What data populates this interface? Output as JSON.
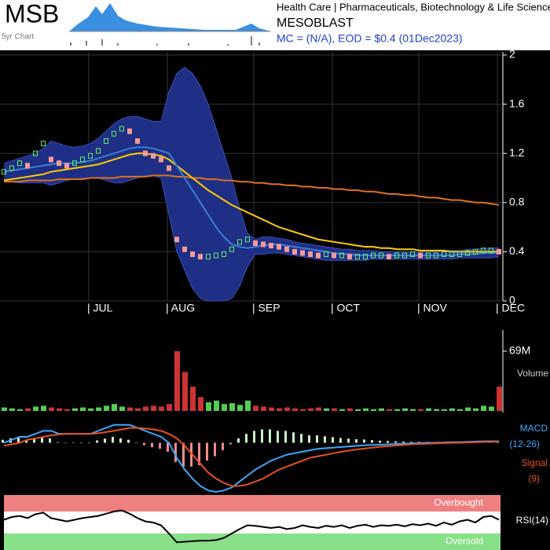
{
  "header": {
    "ticker": "MSB",
    "sparkline_label": "5yr Chart",
    "sector": "Health Care | Pharmaceuticals, Biotechnology & Life Sciences",
    "name": "MESOBLAST",
    "summary": "MC = (N/A), EOD = $0.4 (01Dec2023)"
  },
  "chart_data": [
    {
      "type": "line",
      "categories": [
        null,
        null,
        null,
        null,
        null,
        null,
        null,
        null,
        null,
        null,
        null,
        "| JUL",
        null,
        null,
        null,
        null,
        null,
        null,
        null,
        null,
        null,
        "| AUG",
        null,
        null,
        null,
        null,
        null,
        null,
        null,
        null,
        null,
        null,
        "| SEP",
        null,
        null,
        null,
        null,
        null,
        null,
        null,
        null,
        null,
        "| OCT",
        null,
        null,
        null,
        null,
        null,
        null,
        null,
        null,
        null,
        null,
        "| NOV",
        null,
        null,
        null,
        null,
        null,
        null,
        null,
        null,
        null,
        "| DEC"
      ],
      "ylim": [
        0,
        2
      ],
      "yticks": [
        0,
        0.4,
        0.8,
        1.2,
        1.6,
        2
      ],
      "grid": true,
      "series": [
        {
          "type": "band",
          "color": "#1f2f85",
          "line_color": "#3a4fb8",
          "upper": [
            1.12,
            1.14,
            1.16,
            1.18,
            1.2,
            1.24,
            1.3,
            1.28,
            1.26,
            1.25,
            1.26,
            1.28,
            1.32,
            1.38,
            1.44,
            1.48,
            1.5,
            1.5,
            1.48,
            1.46,
            1.46,
            1.7,
            1.85,
            1.9,
            1.85,
            1.75,
            1.6,
            1.4,
            1.2,
            1.0,
            0.75,
            0.55,
            0.5,
            0.52,
            0.52,
            0.51,
            0.5,
            0.48,
            0.47,
            0.46,
            0.45,
            0.44,
            0.43,
            0.42,
            0.42,
            0.41,
            0.41,
            0.41,
            0.4,
            0.4,
            0.4,
            0.4,
            0.4,
            0.4,
            0.4,
            0.4,
            0.41,
            0.41,
            0.41,
            0.42,
            0.42,
            0.43,
            0.43,
            0.43
          ],
          "lower": [
            0.98,
            0.97,
            0.96,
            0.96,
            0.96,
            0.96,
            0.94,
            0.96,
            0.98,
            0.99,
            1.0,
            1.0,
            1.0,
            0.98,
            0.96,
            0.96,
            0.98,
            1.0,
            1.02,
            1.02,
            1.0,
            0.7,
            0.4,
            0.25,
            0.1,
            0.02,
            0,
            0,
            0,
            0.02,
            0.12,
            0.28,
            0.38,
            0.38,
            0.39,
            0.39,
            0.38,
            0.37,
            0.36,
            0.35,
            0.34,
            0.33,
            0.33,
            0.33,
            0.33,
            0.33,
            0.33,
            0.34,
            0.34,
            0.34,
            0.34,
            0.34,
            0.34,
            0.34,
            0.34,
            0.34,
            0.34,
            0.34,
            0.35,
            0.35,
            0.35,
            0.35,
            0.35,
            0.36
          ]
        },
        {
          "type": "line",
          "color": "#e0701f",
          "values": [
            0.97,
            0.97,
            0.97,
            0.98,
            0.98,
            0.98,
            0.98,
            0.99,
            0.99,
            0.99,
            0.99,
            1.0,
            1.0,
            1.0,
            1.0,
            1.01,
            1.01,
            1.01,
            1.01,
            1.02,
            1.02,
            1.02,
            1.01,
            1.01,
            1.0,
            1.0,
            0.99,
            0.99,
            0.98,
            0.98,
            0.97,
            0.97,
            0.96,
            0.96,
            0.95,
            0.95,
            0.94,
            0.94,
            0.93,
            0.93,
            0.92,
            0.92,
            0.91,
            0.91,
            0.9,
            0.9,
            0.89,
            0.89,
            0.88,
            0.87,
            0.87,
            0.86,
            0.86,
            0.85,
            0.84,
            0.84,
            0.83,
            0.82,
            0.82,
            0.81,
            0.8,
            0.8,
            0.79,
            0.78
          ]
        },
        {
          "type": "line",
          "color": "#ffcc00",
          "values": [
            0.98,
            0.99,
            1.0,
            1.01,
            1.02,
            1.03,
            1.05,
            1.06,
            1.07,
            1.08,
            1.09,
            1.1,
            1.11,
            1.13,
            1.15,
            1.17,
            1.19,
            1.2,
            1.2,
            1.19,
            1.18,
            1.15,
            1.1,
            1.05,
            1.0,
            0.95,
            0.9,
            0.86,
            0.82,
            0.78,
            0.75,
            0.72,
            0.69,
            0.66,
            0.63,
            0.6,
            0.58,
            0.56,
            0.54,
            0.52,
            0.5,
            0.49,
            0.48,
            0.47,
            0.46,
            0.45,
            0.44,
            0.44,
            0.43,
            0.43,
            0.42,
            0.42,
            0.42,
            0.41,
            0.41,
            0.41,
            0.41,
            0.4,
            0.4,
            0.4,
            0.4,
            0.4,
            0.4,
            0.4
          ]
        },
        {
          "type": "line",
          "color": "#3a7fd5",
          "values": [
            1.05,
            1.06,
            1.07,
            1.08,
            1.09,
            1.1,
            1.11,
            1.12,
            1.12,
            1.12,
            1.13,
            1.14,
            1.16,
            1.18,
            1.2,
            1.22,
            1.24,
            1.25,
            1.25,
            1.24,
            1.22,
            1.2,
            1.1,
            1.0,
            0.9,
            0.8,
            0.7,
            0.6,
            0.52,
            0.46,
            0.44,
            0.43,
            0.44,
            0.45,
            0.46,
            0.46,
            0.45,
            0.44,
            0.43,
            0.42,
            0.41,
            0.4,
            0.39,
            0.38,
            0.38,
            0.37,
            0.37,
            0.37,
            0.37,
            0.37,
            0.37,
            0.37,
            0.37,
            0.37,
            0.37,
            0.37,
            0.37,
            0.37,
            0.38,
            0.38,
            0.38,
            0.39,
            0.39,
            0.39
          ]
        },
        {
          "type": "scatter",
          "up_color": "#66ee66",
          "down_color": "#f49a9a",
          "values": [
            1.05,
            1.08,
            1.12,
            1.1,
            1.2,
            1.28,
            1.15,
            1.12,
            1.1,
            1.12,
            1.15,
            1.18,
            1.22,
            1.3,
            1.36,
            1.4,
            1.38,
            1.3,
            1.2,
            1.18,
            1.15,
            1.08,
            0.5,
            0.42,
            0.38,
            0.36,
            0.36,
            0.37,
            0.38,
            0.42,
            0.48,
            0.5,
            0.47,
            0.46,
            0.45,
            0.44,
            0.42,
            0.4,
            0.39,
            0.38,
            0.37,
            0.38,
            0.37,
            0.37,
            0.36,
            0.36,
            0.36,
            0.37,
            0.37,
            0.36,
            0.37,
            0.37,
            0.38,
            0.37,
            0.37,
            0.37,
            0.38,
            0.38,
            0.38,
            0.39,
            0.4,
            0.41,
            0.41,
            0.4
          ]
        }
      ]
    },
    {
      "type": "bar",
      "label": "Volume",
      "up_color": "#55cc55",
      "down_color": "#cc3333",
      "ylim": [
        0,
        69000000
      ],
      "yticks": [
        {
          "value": 69000000,
          "label": "69M"
        }
      ],
      "values": [
        4000000,
        3000000,
        2000000,
        3000000,
        5000000,
        6000000,
        4000000,
        3000000,
        2000000,
        3000000,
        4000000,
        3000000,
        4000000,
        6000000,
        8000000,
        5000000,
        4000000,
        3000000,
        5000000,
        6000000,
        5000000,
        8000000,
        69000000,
        45000000,
        28000000,
        16000000,
        10000000,
        12000000,
        8000000,
        9000000,
        7000000,
        12000000,
        6000000,
        5000000,
        4000000,
        3000000,
        4000000,
        3000000,
        2000000,
        3000000,
        4000000,
        3000000,
        3000000,
        2000000,
        3000000,
        2000000,
        3000000,
        2000000,
        3000000,
        2000000,
        2000000,
        3000000,
        2000000,
        2000000,
        3000000,
        2000000,
        2000000,
        3000000,
        2000000,
        4000000,
        3000000,
        6000000,
        5000000,
        28000000
      ]
    },
    {
      "type": "line",
      "ylim": [
        -0.17,
        0.07
      ],
      "series": [
        {
          "type": "bar",
          "up_color": "#c8f0c8",
          "down_color": "#f08a8a",
          "values": [
            0.01,
            0.015,
            0.02,
            0.01,
            0.015,
            0.02,
            0.015,
            0.002,
            0,
            0,
            0,
            0,
            0.008,
            0.014,
            0.02,
            0.015,
            0.01,
            0,
            -0.008,
            -0.015,
            -0.02,
            -0.03,
            -0.065,
            -0.08,
            -0.08,
            -0.075,
            -0.06,
            -0.045,
            -0.025,
            -0.005,
            0.015,
            0.03,
            0.04,
            0.045,
            0.045,
            0.04,
            0.04,
            0.035,
            0.03,
            0.025,
            0.025,
            0.022,
            0.019,
            0.016,
            0.014,
            0.012,
            0.011,
            0.009,
            0.007,
            0.006,
            0.005,
            0.004,
            0.003,
            0.003,
            0.003,
            0.002,
            0.002,
            0.002,
            0.002,
            0.002,
            0.002,
            0.002,
            0.002,
            0.001
          ]
        },
        {
          "type": "line",
          "name": "MACD",
          "parameters": "(12-26)",
          "color": "#3aa8ff",
          "values": [
            0,
            0.01,
            0.02,
            0.02,
            0.03,
            0.04,
            0.04,
            0.03,
            0.03,
            0.03,
            0.03,
            0.03,
            0.04,
            0.05,
            0.06,
            0.06,
            0.06,
            0.05,
            0.04,
            0.03,
            0.02,
            0,
            -0.05,
            -0.09,
            -0.12,
            -0.145,
            -0.16,
            -0.165,
            -0.16,
            -0.15,
            -0.13,
            -0.11,
            -0.09,
            -0.075,
            -0.06,
            -0.05,
            -0.04,
            -0.035,
            -0.03,
            -0.025,
            -0.02,
            -0.018,
            -0.016,
            -0.014,
            -0.012,
            -0.01,
            -0.008,
            -0.007,
            -0.006,
            -0.005,
            -0.004,
            -0.003,
            -0.002,
            -0.001,
            0,
            0,
            0.001,
            0.002,
            0.002,
            0.003,
            0.004,
            0.005,
            0.005,
            0.005
          ]
        },
        {
          "type": "line",
          "name": "Signal",
          "parameters": "(9)",
          "color": "#e8501f",
          "values": [
            -0.01,
            -0.005,
            0,
            0.01,
            0.015,
            0.02,
            0.025,
            0.028,
            0.03,
            0.03,
            0.03,
            0.03,
            0.032,
            0.036,
            0.04,
            0.045,
            0.05,
            0.05,
            0.048,
            0.045,
            0.04,
            0.03,
            0.015,
            -0.01,
            -0.04,
            -0.07,
            -0.1,
            -0.12,
            -0.135,
            -0.145,
            -0.145,
            -0.14,
            -0.13,
            -0.12,
            -0.105,
            -0.09,
            -0.08,
            -0.07,
            -0.06,
            -0.05,
            -0.045,
            -0.04,
            -0.035,
            -0.03,
            -0.026,
            -0.022,
            -0.019,
            -0.016,
            -0.013,
            -0.011,
            -0.009,
            -0.007,
            -0.005,
            -0.004,
            -0.003,
            -0.002,
            -0.001,
            0,
            0,
            0.001,
            0.002,
            0.003,
            0.003,
            0.004
          ]
        }
      ]
    },
    {
      "type": "line",
      "label": "RSI(14)",
      "ylim": [
        0,
        100
      ],
      "color": "#000000",
      "bands": [
        {
          "label": "Overbought",
          "from": 70,
          "to": 100,
          "color": "#f08080"
        },
        {
          "label": "Oversold",
          "from": 0,
          "to": 30,
          "color": "#88e088"
        }
      ],
      "values": [
        55,
        60,
        62,
        58,
        65,
        68,
        58,
        55,
        52,
        55,
        58,
        60,
        62,
        66,
        70,
        72,
        66,
        58,
        52,
        50,
        45,
        30,
        14,
        15,
        16,
        17,
        17,
        18,
        22,
        30,
        38,
        45,
        44,
        42,
        40,
        42,
        38,
        40,
        45,
        42,
        40,
        44,
        42,
        45,
        40,
        44,
        46,
        42,
        45,
        44,
        46,
        43,
        47,
        45,
        48,
        44,
        50,
        46,
        52,
        55,
        50,
        60,
        62,
        55
      ]
    }
  ]
}
